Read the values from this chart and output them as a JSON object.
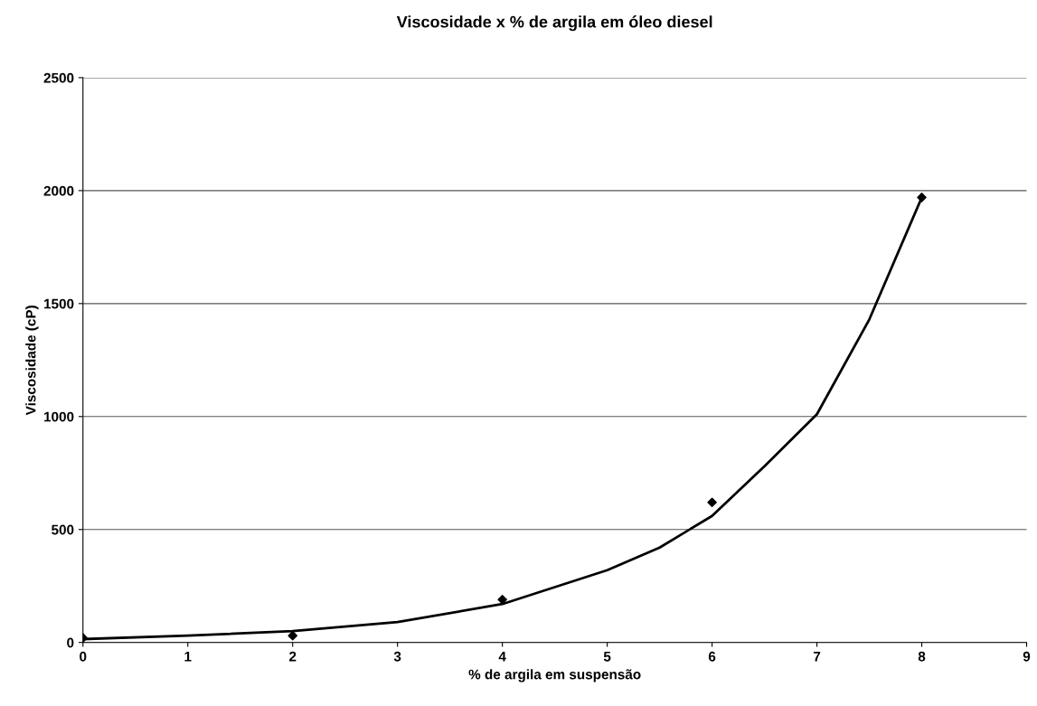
{
  "chart_data": {
    "type": "scatter",
    "title": "Viscosidade x % de argila em óleo diesel",
    "xlabel": "% de argila em suspensão",
    "ylabel": "Viscosidade (cP)",
    "x": [
      0,
      2,
      4,
      6,
      8
    ],
    "series": [
      {
        "color": "#000000",
        "values": [
          20,
          30,
          190,
          620,
          1970
        ],
        "marker": "diamond"
      },
      {
        "type": "line",
        "color": "#000000",
        "x": [
          0,
          1,
          2,
          3,
          4,
          5,
          5.5,
          6,
          6.5,
          7,
          7.5,
          8
        ],
        "values": [
          15,
          30,
          50,
          90,
          170,
          320,
          420,
          560,
          780,
          1010,
          1430,
          1970
        ],
        "marker": "none",
        "line_style": "solid"
      }
    ],
    "xlim": [
      0,
      9
    ],
    "ylim": [
      0,
      2500
    ],
    "xticks": [
      0,
      1,
      2,
      3,
      4,
      5,
      6,
      7,
      8,
      9
    ],
    "yticks": [
      0,
      500,
      1000,
      1500,
      2000,
      2500
    ],
    "grid": "y",
    "legend": false
  }
}
